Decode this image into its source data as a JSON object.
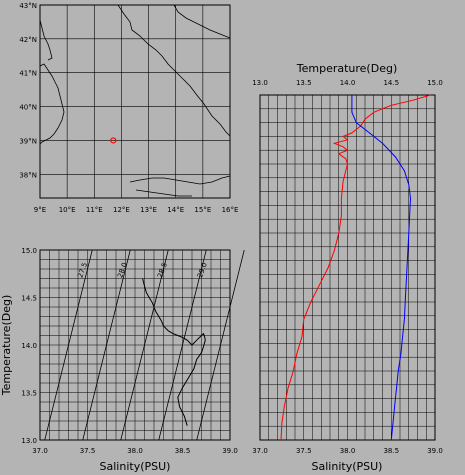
{
  "chart_data": [
    {
      "type": "map",
      "title": "",
      "x_ticks": [
        "9°E",
        "10°E",
        "11°E",
        "12°E",
        "13°E",
        "14°E",
        "15°E",
        "16°E"
      ],
      "y_ticks": [
        "38°N",
        "39°N",
        "40°N",
        "41°N",
        "42°N",
        "43°N"
      ],
      "xlim": [
        9,
        16
      ],
      "ylim": [
        37.3,
        43
      ],
      "station": {
        "lon": 11.7,
        "lat": 39.0,
        "color": "#ff0000"
      },
      "grid": true
    },
    {
      "type": "line",
      "xlabel": "Salinity(PSU)",
      "ylabel": "Temperature(Deg)",
      "x_ticks": [
        "37.0",
        "37.5",
        "38.0",
        "38.5",
        "39.0"
      ],
      "y_ticks": [
        "13.0",
        "13.5",
        "14.0",
        "14.5",
        "15.0"
      ],
      "xlim": [
        37.0,
        39.0
      ],
      "ylim": [
        13.0,
        15.0
      ],
      "isopycnal_labels": [
        "27.5",
        "28.0",
        "28.5",
        "29.0"
      ],
      "ts_curve": {
        "salinity": [
          38.55,
          38.52,
          38.47,
          38.45,
          38.5,
          38.56,
          38.62,
          38.65,
          38.7,
          38.72,
          38.74,
          38.73,
          38.72,
          38.7,
          38.65,
          38.6,
          38.58,
          38.55,
          38.5,
          38.45,
          38.4,
          38.35,
          38.3,
          38.28,
          38.25,
          38.22,
          38.2,
          38.18,
          38.15,
          38.12,
          38.1,
          38.08
        ],
        "temperature": [
          13.15,
          13.25,
          13.35,
          13.45,
          13.55,
          13.65,
          13.75,
          13.85,
          13.92,
          13.98,
          14.05,
          14.1,
          14.12,
          14.1,
          14.05,
          14.0,
          14.02,
          14.05,
          14.08,
          14.1,
          14.12,
          14.15,
          14.2,
          14.25,
          14.3,
          14.35,
          14.4,
          14.45,
          14.5,
          14.55,
          14.62,
          14.7
        ]
      },
      "grid": true
    },
    {
      "type": "line",
      "xlabel": "Salinity(PSU)",
      "top_label": "Temperature(Deg)",
      "bottom_ticks": [
        "37.0",
        "37.5",
        "38.0",
        "38.5",
        "39.0"
      ],
      "top_ticks": [
        "13.0",
        "13.5",
        "14.0",
        "14.5",
        "15.0"
      ],
      "bottom_lim": [
        37.0,
        39.0
      ],
      "top_lim": [
        13.0,
        15.0
      ],
      "series": [
        {
          "color": "#ff0000",
          "axis": "temperature",
          "depth_fraction": [
            0.0,
            0.015,
            0.03,
            0.05,
            0.07,
            0.09,
            0.11,
            0.12,
            0.13,
            0.14,
            0.15,
            0.16,
            0.17,
            0.185,
            0.2,
            0.25,
            0.3,
            0.35,
            0.4,
            0.45,
            0.5,
            0.55,
            0.6,
            0.65,
            0.7,
            0.75,
            0.8,
            0.85,
            0.9,
            0.95,
            1.0
          ],
          "values": [
            14.95,
            14.75,
            14.5,
            14.3,
            14.2,
            14.15,
            14.05,
            13.95,
            14.0,
            13.85,
            13.95,
            14.0,
            13.9,
            13.98,
            14.0,
            13.95,
            13.93,
            13.93,
            13.9,
            13.85,
            13.78,
            13.68,
            13.58,
            13.5,
            13.48,
            13.42,
            13.38,
            13.32,
            13.28,
            13.25,
            13.24
          ]
        },
        {
          "color": "#0000ff",
          "axis": "salinity",
          "depth_fraction": [
            0.0,
            0.05,
            0.08,
            0.11,
            0.14,
            0.18,
            0.22,
            0.26,
            0.3,
            0.35,
            0.4,
            0.45,
            0.5,
            0.55,
            0.6,
            0.65,
            0.7,
            0.75,
            0.8,
            0.85,
            0.9,
            0.95,
            1.0
          ],
          "values": [
            38.05,
            38.05,
            38.1,
            38.25,
            38.4,
            38.55,
            38.65,
            38.7,
            38.72,
            38.71,
            38.7,
            38.69,
            38.68,
            38.67,
            38.66,
            38.65,
            38.63,
            38.61,
            38.58,
            38.56,
            38.54,
            38.52,
            38.5
          ]
        }
      ],
      "grid": true
    }
  ]
}
